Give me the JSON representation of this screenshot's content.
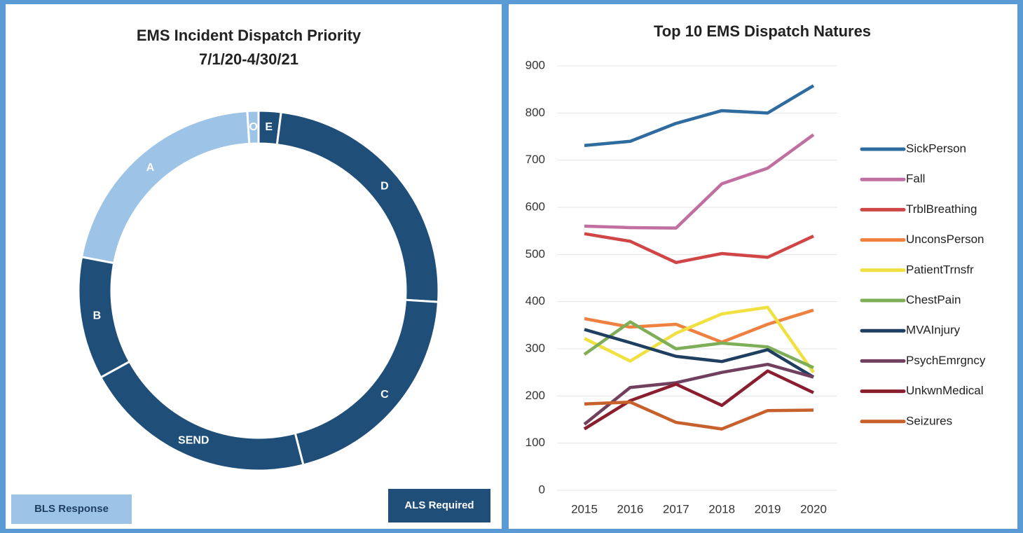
{
  "chart_data": [
    {
      "type": "donut",
      "title": "EMS Incident Dispatch Priority",
      "subtitle": "7/1/20-4/30/21",
      "categories": [
        "E",
        "D",
        "C",
        "SEND",
        "B",
        "A",
        "O"
      ],
      "values": [
        2,
        24,
        20,
        21,
        11,
        21,
        1
      ],
      "colors": [
        "#1f4e79",
        "#1f4e79",
        "#1f4e79",
        "#1f4e79",
        "#1f4e79",
        "#9dc3e6",
        "#9dc3e6"
      ],
      "legend": [
        {
          "name": "BLS Response",
          "color": "#9dc3e6"
        },
        {
          "name": "ALS Required",
          "color": "#1f4e79"
        }
      ]
    },
    {
      "type": "line",
      "title": "Top 10 EMS Dispatch Natures",
      "categories": [
        "2015",
        "2016",
        "2017",
        "2018",
        "2019",
        "2020"
      ],
      "ylim": [
        0,
        900
      ],
      "yticks": [
        0,
        100,
        200,
        300,
        400,
        500,
        600,
        700,
        800,
        900
      ],
      "grid": true,
      "legend": "right",
      "series": [
        {
          "name": "SickPerson",
          "color": "#2e6b9e",
          "values": [
            731,
            740,
            778,
            805,
            800,
            858
          ]
        },
        {
          "name": "Fall",
          "color": "#c06fa0",
          "values": [
            560,
            557,
            556,
            650,
            683,
            754
          ]
        },
        {
          "name": "TrblBreathing",
          "color": "#d04545",
          "values": [
            544,
            528,
            483,
            502,
            494,
            539
          ]
        },
        {
          "name": "UnconsPerson",
          "color": "#f08040",
          "values": [
            364,
            346,
            352,
            314,
            352,
            382
          ]
        },
        {
          "name": "PatientTrnsfr",
          "color": "#f0e040",
          "values": [
            322,
            274,
            333,
            374,
            388,
            250
          ]
        },
        {
          "name": "ChestPain",
          "color": "#7fae58",
          "values": [
            288,
            357,
            300,
            312,
            304,
            260
          ]
        },
        {
          "name": "MVAInjury",
          "color": "#1f3f60",
          "values": [
            341,
            313,
            284,
            273,
            298,
            240
          ]
        },
        {
          "name": "PsychEmrgncy",
          "color": "#70405e",
          "values": [
            140,
            218,
            228,
            250,
            267,
            240
          ]
        },
        {
          "name": "UnkwnMedical",
          "color": "#8b1e2e",
          "values": [
            130,
            190,
            225,
            180,
            253,
            207
          ]
        },
        {
          "name": "Seizures",
          "color": "#c8602c",
          "values": [
            183,
            187,
            144,
            130,
            169,
            170
          ]
        }
      ]
    }
  ]
}
